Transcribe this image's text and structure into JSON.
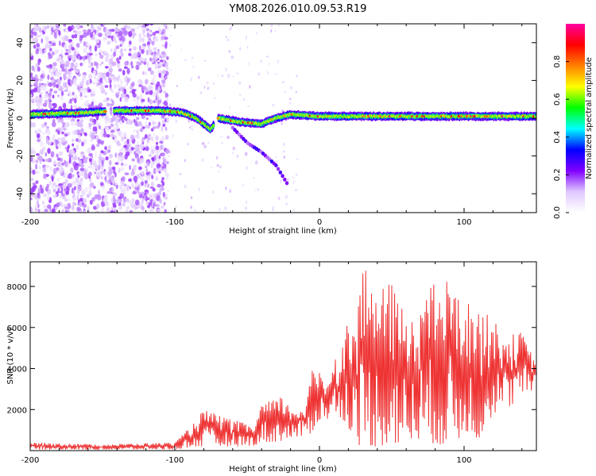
{
  "title": "YM08.2026.010.09.53.R19",
  "chart_data": [
    {
      "type": "heatmap",
      "title": "YM08.2026.010.09.53.R19",
      "xlabel": "Height of straight line (km)",
      "ylabel": "Frequency (Hz)",
      "xlim": [
        -200,
        150
      ],
      "ylim": [
        -50,
        50
      ],
      "xticks": [
        -200,
        -100,
        0,
        100
      ],
      "xtick_labels": [
        "-200",
        "-100",
        "0",
        "100"
      ],
      "yticks": [
        -40,
        -20,
        0,
        20,
        40
      ],
      "ytick_labels": [
        "-40",
        "-20",
        "0",
        "20",
        "40"
      ],
      "colorbar": {
        "label": "Normalized spectral amplitude",
        "range": [
          0.0,
          1.0
        ],
        "ticks": [
          0.0,
          0.2,
          0.4,
          0.6,
          0.8
        ],
        "tick_labels": [
          "0.0",
          "0.2",
          "0.4",
          "0.6",
          "0.8"
        ],
        "colormap": [
          "#ffffff",
          "#e0c8ff",
          "#8000ff",
          "#0000ff",
          "#00ffff",
          "#00ff00",
          "#ffff00",
          "#ff8000",
          "#ff0000",
          "#ff00a0"
        ]
      },
      "main_band": {
        "description": "narrow band of high spectral amplitude near 0 Hz",
        "points": [
          [
            -200,
            2
          ],
          [
            -160,
            3
          ],
          [
            -140,
            4
          ],
          [
            -110,
            4
          ],
          [
            -95,
            3
          ],
          [
            -85,
            0
          ],
          [
            -75,
            -6
          ],
          [
            -70,
            0
          ],
          [
            -55,
            -2
          ],
          [
            -40,
            -3
          ],
          [
            -30,
            0
          ],
          [
            -20,
            2
          ],
          [
            0,
            1
          ],
          [
            50,
            1
          ],
          [
            100,
            1
          ],
          [
            150,
            1
          ]
        ]
      },
      "secondary_branch": {
        "points": [
          [
            -60,
            -5
          ],
          [
            -50,
            -13
          ],
          [
            -40,
            -18
          ],
          [
            -30,
            -25
          ],
          [
            -22,
            -35
          ]
        ]
      }
    },
    {
      "type": "line",
      "xlabel": "Height of straight line (km)",
      "ylabel": "SNR (10 * v/v)",
      "xlim": [
        -200,
        150
      ],
      "ylim": [
        0,
        9200
      ],
      "xticks": [
        -200,
        -100,
        0,
        100
      ],
      "xtick_labels": [
        "-200",
        "-100",
        "0",
        "100"
      ],
      "yticks": [
        2000,
        4000,
        6000,
        8000
      ],
      "ytick_labels": [
        "2000",
        "4000",
        "6000",
        "8000"
      ],
      "series": [
        {
          "name": "SNR",
          "color": "#ee3333",
          "envelope_x": [
            -200,
            -150,
            -100,
            -90,
            -80,
            -60,
            -45,
            -40,
            -30,
            -25,
            -20,
            -10,
            -5,
            0,
            5,
            10,
            15,
            20,
            22,
            25,
            30,
            40,
            50,
            60,
            70,
            80,
            90,
            95,
            100,
            110,
            120,
            130,
            140,
            150
          ],
          "envelope_min": [
            50,
            50,
            60,
            150,
            200,
            200,
            250,
            400,
            400,
            500,
            600,
            700,
            900,
            1500,
            1500,
            1800,
            1600,
            1200,
            700,
            300,
            200,
            200,
            300,
            300,
            600,
            300,
            300,
            300,
            1000,
            500,
            1800,
            2000,
            2700,
            3000
          ],
          "envelope_max": [
            400,
            300,
            400,
            1100,
            2000,
            1500,
            1200,
            2300,
            2500,
            2700,
            2000,
            2200,
            3900,
            4000,
            3400,
            4500,
            5000,
            6500,
            6500,
            6500,
            9000,
            7800,
            8200,
            6500,
            7500,
            8200,
            8400,
            7600,
            7300,
            7000,
            6400,
            5600,
            5800,
            4200
          ]
        }
      ]
    }
  ]
}
